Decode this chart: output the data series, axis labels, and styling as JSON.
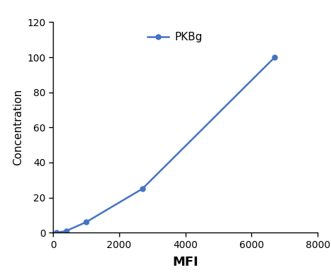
{
  "x": [
    100,
    400,
    1000,
    2700,
    6700
  ],
  "y": [
    0,
    1,
    6,
    25,
    100
  ],
  "line_color": "#4472C4",
  "marker_style": "o",
  "marker_size": 5,
  "line_width": 1.8,
  "xlabel": "MFI",
  "ylabel": "Concentration",
  "xlim": [
    0,
    8000
  ],
  "ylim": [
    0,
    120
  ],
  "xticks": [
    0,
    2000,
    4000,
    6000,
    8000
  ],
  "yticks": [
    0,
    20,
    40,
    60,
    80,
    100,
    120
  ],
  "legend_label": "PKBg",
  "xlabel_fontsize": 13,
  "ylabel_fontsize": 11,
  "tick_fontsize": 10,
  "legend_fontsize": 11,
  "background_color": "#ffffff"
}
